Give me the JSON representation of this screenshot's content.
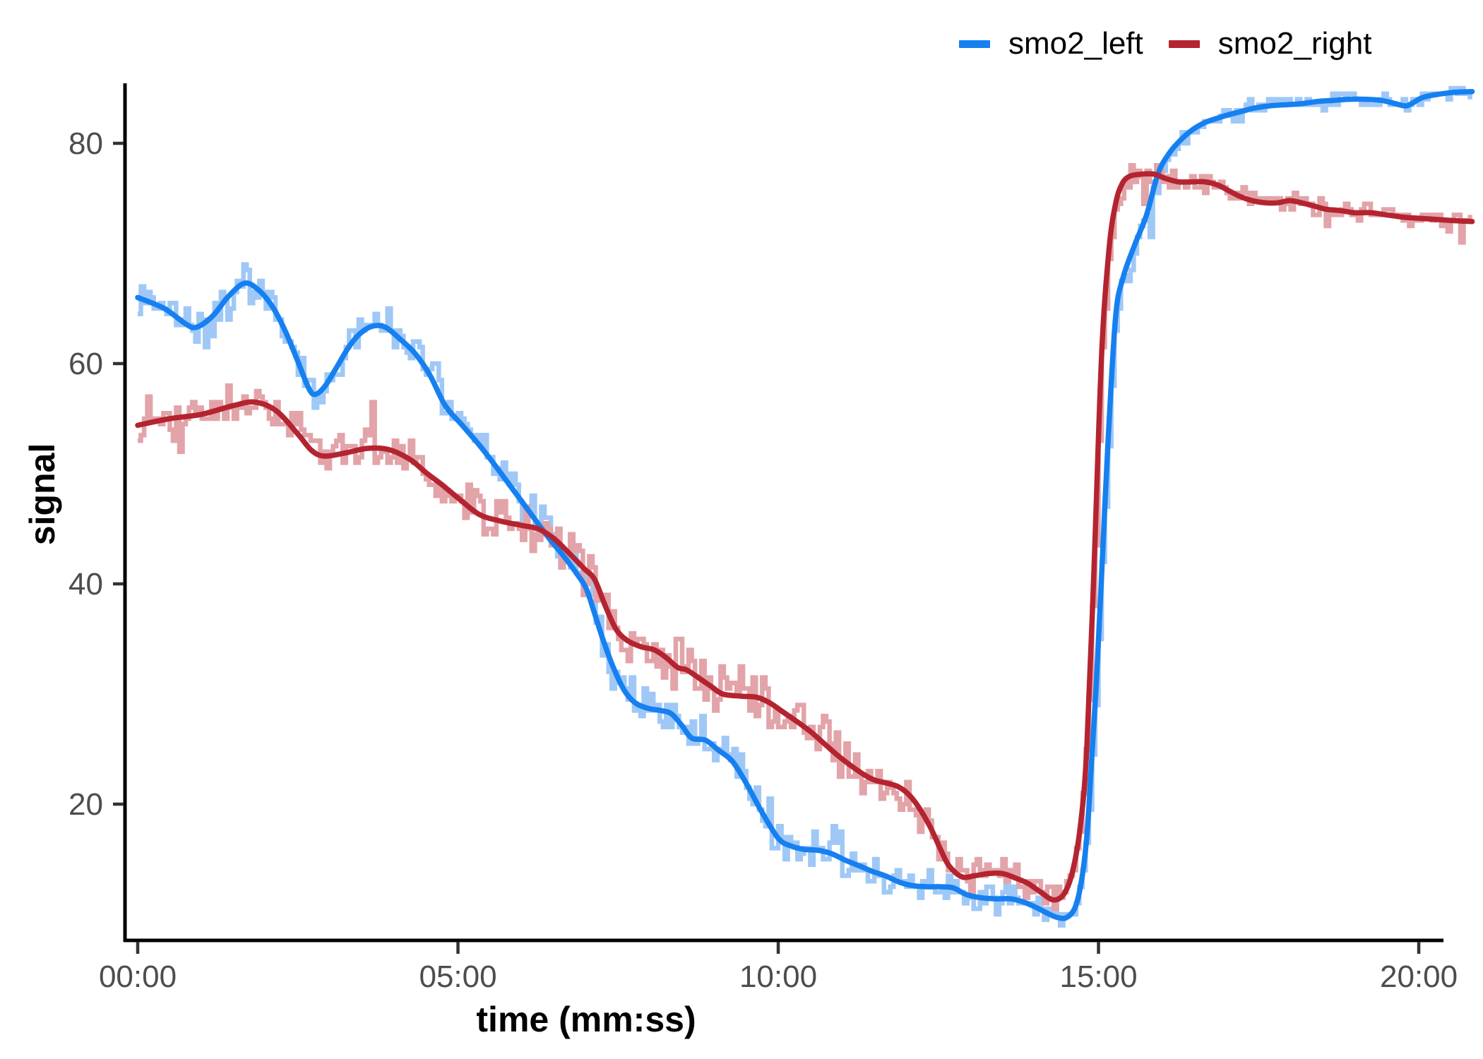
{
  "chart_data": {
    "type": "line",
    "title": "",
    "xlabel": "time (mm:ss)",
    "ylabel": "signal",
    "x_unit": "seconds",
    "xlim_seconds": [
      0,
      1250
    ],
    "ylim": [
      8,
      85.5
    ],
    "grid": false,
    "legend_position": "top-right",
    "background": "#ffffff",
    "axis_color": "#000000",
    "tick_mark_color": "#333333",
    "tick_label_color": "#4d4d4d",
    "x_ticks": [
      {
        "seconds": 0,
        "label": "00:00"
      },
      {
        "seconds": 300,
        "label": "05:00"
      },
      {
        "seconds": 600,
        "label": "10:00"
      },
      {
        "seconds": 900,
        "label": "15:00"
      },
      {
        "seconds": 1200,
        "label": "20:00"
      }
    ],
    "y_ticks": [
      {
        "value": 20,
        "label": "20"
      },
      {
        "value": 40,
        "label": "40"
      },
      {
        "value": 60,
        "label": "60"
      },
      {
        "value": 80,
        "label": "80"
      }
    ],
    "series": [
      {
        "name": "smo2_left",
        "color": "#1680F0",
        "raw_color": "#9FC8F6",
        "smooth": [
          [
            0,
            66
          ],
          [
            25,
            65
          ],
          [
            45,
            63.6
          ],
          [
            55,
            63.3
          ],
          [
            70,
            64.3
          ],
          [
            85,
            66.1
          ],
          [
            100,
            67.3
          ],
          [
            113,
            66.7
          ],
          [
            126,
            65.2
          ],
          [
            138,
            63
          ],
          [
            150,
            60.2
          ],
          [
            160,
            57.8
          ],
          [
            166,
            57.2
          ],
          [
            175,
            57.9
          ],
          [
            186,
            59.6
          ],
          [
            197,
            61.4
          ],
          [
            208,
            62.7
          ],
          [
            220,
            63.4
          ],
          [
            232,
            63.3
          ],
          [
            246,
            62.2
          ],
          [
            260,
            60.9
          ],
          [
            274,
            58.9
          ],
          [
            288,
            56.2
          ],
          [
            304,
            54.4
          ],
          [
            320,
            52.6
          ],
          [
            336,
            50.6
          ],
          [
            352,
            48.5
          ],
          [
            368,
            46.4
          ],
          [
            384,
            44.3
          ],
          [
            400,
            42.4
          ],
          [
            410,
            41.1
          ],
          [
            420,
            39.6
          ],
          [
            428,
            37.3
          ],
          [
            436,
            34.9
          ],
          [
            446,
            32.3
          ],
          [
            456,
            30.3
          ],
          [
            466,
            29.2
          ],
          [
            478,
            28.7
          ],
          [
            490,
            28.5
          ],
          [
            500,
            28.2
          ],
          [
            510,
            27.1
          ],
          [
            519,
            26
          ],
          [
            532,
            25.8
          ],
          [
            544,
            24.9
          ],
          [
            557,
            23.9
          ],
          [
            570,
            21.9
          ],
          [
            584,
            19.4
          ],
          [
            600,
            16.9
          ],
          [
            612,
            16.2
          ],
          [
            624,
            15.9
          ],
          [
            638,
            15.8
          ],
          [
            650,
            15.5
          ],
          [
            663,
            14.9
          ],
          [
            676,
            14.4
          ],
          [
            688,
            13.9
          ],
          [
            700,
            13.5
          ],
          [
            714,
            12.9
          ],
          [
            726,
            12.6
          ],
          [
            740,
            12.5
          ],
          [
            752,
            12.5
          ],
          [
            764,
            12.4
          ],
          [
            776,
            11.8
          ],
          [
            790,
            11.5
          ],
          [
            804,
            11.4
          ],
          [
            818,
            11.4
          ],
          [
            830,
            11.1
          ],
          [
            842,
            10.6
          ],
          [
            854,
            10
          ],
          [
            862,
            9.7
          ],
          [
            870,
            9.7
          ],
          [
            878,
            10.6
          ],
          [
            884,
            13
          ],
          [
            889,
            17
          ],
          [
            893,
            23
          ],
          [
            898,
            31
          ],
          [
            903,
            41
          ],
          [
            909,
            53
          ],
          [
            916,
            64.2
          ],
          [
            923,
            67.8
          ],
          [
            934,
            70.8
          ],
          [
            945,
            73.5
          ],
          [
            956,
            77.3
          ],
          [
            967,
            79.2
          ],
          [
            978,
            80.4
          ],
          [
            989,
            81.3
          ],
          [
            1000,
            81.9
          ],
          [
            1012,
            82.3
          ],
          [
            1022,
            82.6
          ],
          [
            1034,
            82.9
          ],
          [
            1046,
            83.2
          ],
          [
            1060,
            83.4
          ],
          [
            1075,
            83.5
          ],
          [
            1090,
            83.6
          ],
          [
            1105,
            83.8
          ],
          [
            1120,
            83.9
          ],
          [
            1135,
            84
          ],
          [
            1150,
            84
          ],
          [
            1165,
            83.9
          ],
          [
            1178,
            83.6
          ],
          [
            1188,
            83.4
          ],
          [
            1195,
            83.7
          ],
          [
            1205,
            84.2
          ],
          [
            1230,
            84.6
          ],
          [
            1250,
            84.7
          ]
        ]
      },
      {
        "name": "smo2_right",
        "color": "#B42430",
        "raw_color": "#E2A4A9",
        "smooth": [
          [
            0,
            54.4
          ],
          [
            30,
            55
          ],
          [
            60,
            55.4
          ],
          [
            90,
            56.2
          ],
          [
            110,
            56.5
          ],
          [
            130,
            55.7
          ],
          [
            150,
            53.6
          ],
          [
            163,
            52.1
          ],
          [
            175,
            51.6
          ],
          [
            195,
            51.9
          ],
          [
            215,
            52.3
          ],
          [
            235,
            52.2
          ],
          [
            255,
            51.3
          ],
          [
            270,
            50.1
          ],
          [
            285,
            49
          ],
          [
            300,
            47.8
          ],
          [
            320,
            46.3
          ],
          [
            340,
            45.7
          ],
          [
            360,
            45.3
          ],
          [
            375,
            45
          ],
          [
            390,
            44.1
          ],
          [
            405,
            42.7
          ],
          [
            418,
            41.4
          ],
          [
            428,
            40.4
          ],
          [
            438,
            38
          ],
          [
            448,
            35.9
          ],
          [
            458,
            34.9
          ],
          [
            471,
            34.3
          ],
          [
            484,
            34
          ],
          [
            495,
            33.3
          ],
          [
            506,
            32.4
          ],
          [
            514,
            32.2
          ],
          [
            525,
            31.5
          ],
          [
            537,
            30.7
          ],
          [
            548,
            30
          ],
          [
            565,
            29.8
          ],
          [
            580,
            29.7
          ],
          [
            592,
            29.2
          ],
          [
            604,
            28.4
          ],
          [
            616,
            27.6
          ],
          [
            630,
            26.6
          ],
          [
            643,
            25.5
          ],
          [
            656,
            24.4
          ],
          [
            668,
            23.5
          ],
          [
            680,
            22.7
          ],
          [
            690,
            22.2
          ],
          [
            702,
            21.9
          ],
          [
            712,
            21.6
          ],
          [
            722,
            20.9
          ],
          [
            731,
            19.8
          ],
          [
            742,
            18
          ],
          [
            752,
            15.9
          ],
          [
            760,
            14.4
          ],
          [
            772,
            13.4
          ],
          [
            784,
            13.5
          ],
          [
            797,
            13.7
          ],
          [
            810,
            13.7
          ],
          [
            822,
            13.3
          ],
          [
            834,
            12.8
          ],
          [
            846,
            12
          ],
          [
            858,
            11.3
          ],
          [
            868,
            11.9
          ],
          [
            876,
            14
          ],
          [
            883,
            18
          ],
          [
            889,
            25
          ],
          [
            896,
            42
          ],
          [
            903,
            61
          ],
          [
            910,
            70.5
          ],
          [
            916,
            74.5
          ],
          [
            922,
            76.3
          ],
          [
            929,
            77
          ],
          [
            940,
            77.2
          ],
          [
            952,
            77.2
          ],
          [
            963,
            76.8
          ],
          [
            975,
            76.5
          ],
          [
            988,
            76.5
          ],
          [
            1000,
            76.5
          ],
          [
            1012,
            76.2
          ],
          [
            1022,
            75.7
          ],
          [
            1032,
            75.2
          ],
          [
            1044,
            74.8
          ],
          [
            1056,
            74.6
          ],
          [
            1068,
            74.6
          ],
          [
            1079,
            74.8
          ],
          [
            1090,
            74.6
          ],
          [
            1102,
            74.3
          ],
          [
            1114,
            74
          ],
          [
            1126,
            73.9
          ],
          [
            1140,
            73.7
          ],
          [
            1155,
            73.7
          ],
          [
            1170,
            73.5
          ],
          [
            1185,
            73.3
          ],
          [
            1200,
            73.2
          ],
          [
            1230,
            73
          ],
          [
            1250,
            72.9
          ]
        ]
      }
    ],
    "raw_band": {
      "sample_seconds": 3,
      "quantize": 0.5,
      "series": [
        {
          "name": "smo2_left",
          "seed": 41,
          "amplitude": [
            [
              0,
              2.2
            ],
            [
              400,
              2.5
            ],
            [
              760,
              1.8
            ],
            [
              830,
              1.1
            ],
            [
              900,
              1.6
            ],
            [
              960,
              0.9
            ],
            [
              1050,
              0.8
            ]
          ]
        },
        {
          "name": "smo2_right",
          "seed": 97,
          "amplitude": [
            [
              0,
              1.7
            ],
            [
              140,
              2.3
            ],
            [
              400,
              2.8
            ],
            [
              700,
              2.4
            ],
            [
              790,
              1.4
            ],
            [
              900,
              1.6
            ],
            [
              960,
              1.0
            ],
            [
              1100,
              1.1
            ]
          ]
        }
      ]
    }
  },
  "legend": {
    "items": [
      {
        "label": "smo2_left"
      },
      {
        "label": "smo2_right"
      }
    ]
  }
}
